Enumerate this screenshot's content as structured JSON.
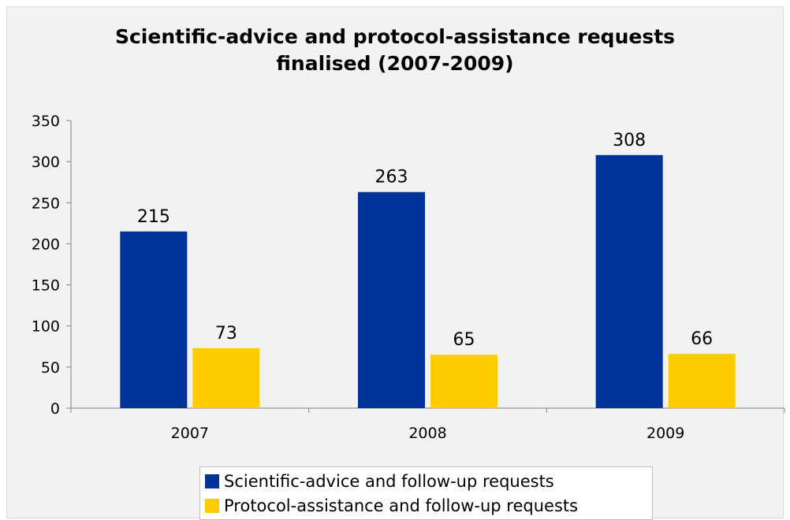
{
  "chart_data": {
    "type": "bar",
    "title_lines": [
      "Scientific-advice and protocol-assistance requests",
      "finalised (2007-2009)"
    ],
    "categories": [
      "2007",
      "2008",
      "2009"
    ],
    "series": [
      {
        "name": "Scientific-advice and follow-up requests",
        "values": [
          215,
          263,
          308
        ],
        "color": "#003399"
      },
      {
        "name": "Protocol-assistance and follow-up requests",
        "values": [
          73,
          65,
          66
        ],
        "color": "#ffcc00"
      }
    ],
    "ylim": [
      0,
      350
    ],
    "yticks": [
      0,
      50,
      100,
      150,
      200,
      250,
      300,
      350
    ],
    "xlabel": "",
    "ylabel": "",
    "grid": false,
    "legend_position": "bottom"
  }
}
